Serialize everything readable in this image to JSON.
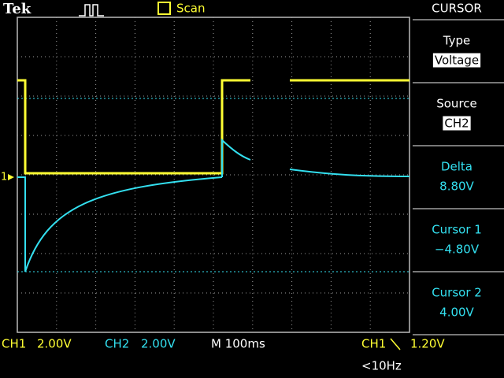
{
  "header": {
    "brand": "Tek",
    "mode": "Scan"
  },
  "menu": {
    "title": "CURSOR",
    "items": [
      {
        "label": "Type",
        "value": "Voltage"
      },
      {
        "label": "Source",
        "value": "CH2"
      },
      {
        "label": "Delta",
        "value": "8.80V"
      },
      {
        "label": "Cursor 1",
        "value": "−4.80V"
      },
      {
        "label": "Cursor 2",
        "value": "4.00V"
      }
    ]
  },
  "screen": {
    "ground_marker": "1"
  },
  "status": {
    "ch1": {
      "channel": "CH1",
      "scale": "2.00V"
    },
    "ch2": {
      "channel": "CH2",
      "scale": "2.00V"
    },
    "timebase": "M 100ms",
    "trigger": {
      "source": "CH1",
      "level": "1.20V"
    },
    "frequency": "<10Hz"
  }
}
